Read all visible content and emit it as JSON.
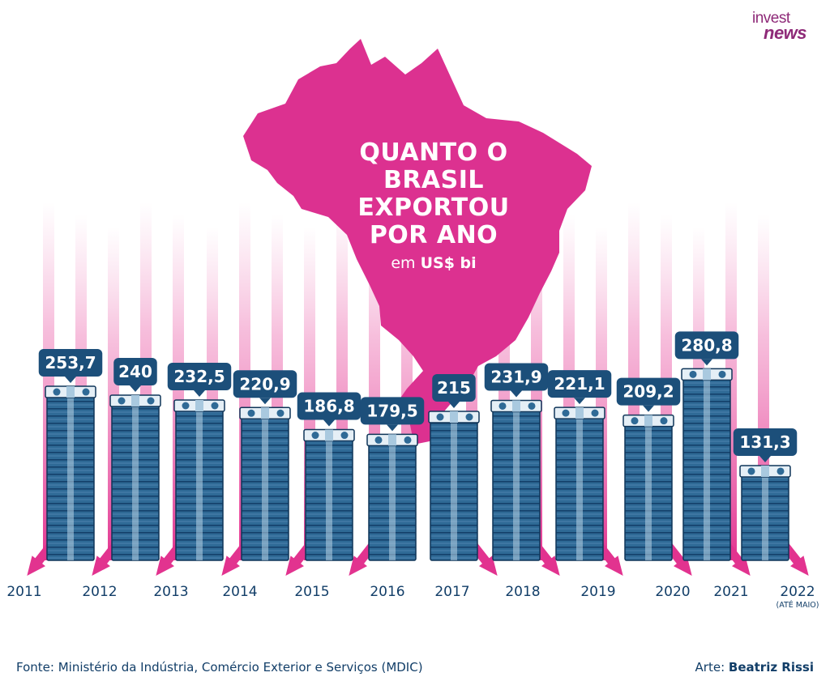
{
  "logo": {
    "line1": "invest",
    "line2": "news"
  },
  "title": "QUANTO O\nBRASIL\nEXPORTOU\nPOR ANO",
  "unit_prefix": "em",
  "unit": "US$ bi",
  "source": "Fonte: Ministério da Indústria, Comércio Exterior e Serviços (MDIC)",
  "credit_label": "Arte:",
  "credit_name": "Beatriz Rissi",
  "colors": {
    "navy": "#1c4f7a",
    "bill": "#2f6a96",
    "pink": "#e2338f",
    "map": "#dc3190",
    "text": "#123e68"
  },
  "chart_data": {
    "type": "bar",
    "title": "QUANTO O BRASIL EXPORTOU POR ANO",
    "unit": "US$ bi",
    "categories": [
      "2011",
      "2012",
      "2013",
      "2014",
      "2015",
      "2016",
      "2017",
      "2018",
      "2019",
      "2020",
      "2021",
      "2022"
    ],
    "category_notes": {
      "2022": "(ATÉ MAIO)"
    },
    "values": [
      253.7,
      240,
      232.5,
      220.9,
      186.8,
      179.5,
      215,
      231.9,
      221.1,
      209.2,
      280.8,
      131.3
    ],
    "value_labels": [
      "253,7",
      "240",
      "232,5",
      "220,9",
      "186,8",
      "179,5",
      "215",
      "231,9",
      "221,1",
      "209,2",
      "280,8",
      "131,3"
    ],
    "grid": false,
    "legend": "none"
  }
}
